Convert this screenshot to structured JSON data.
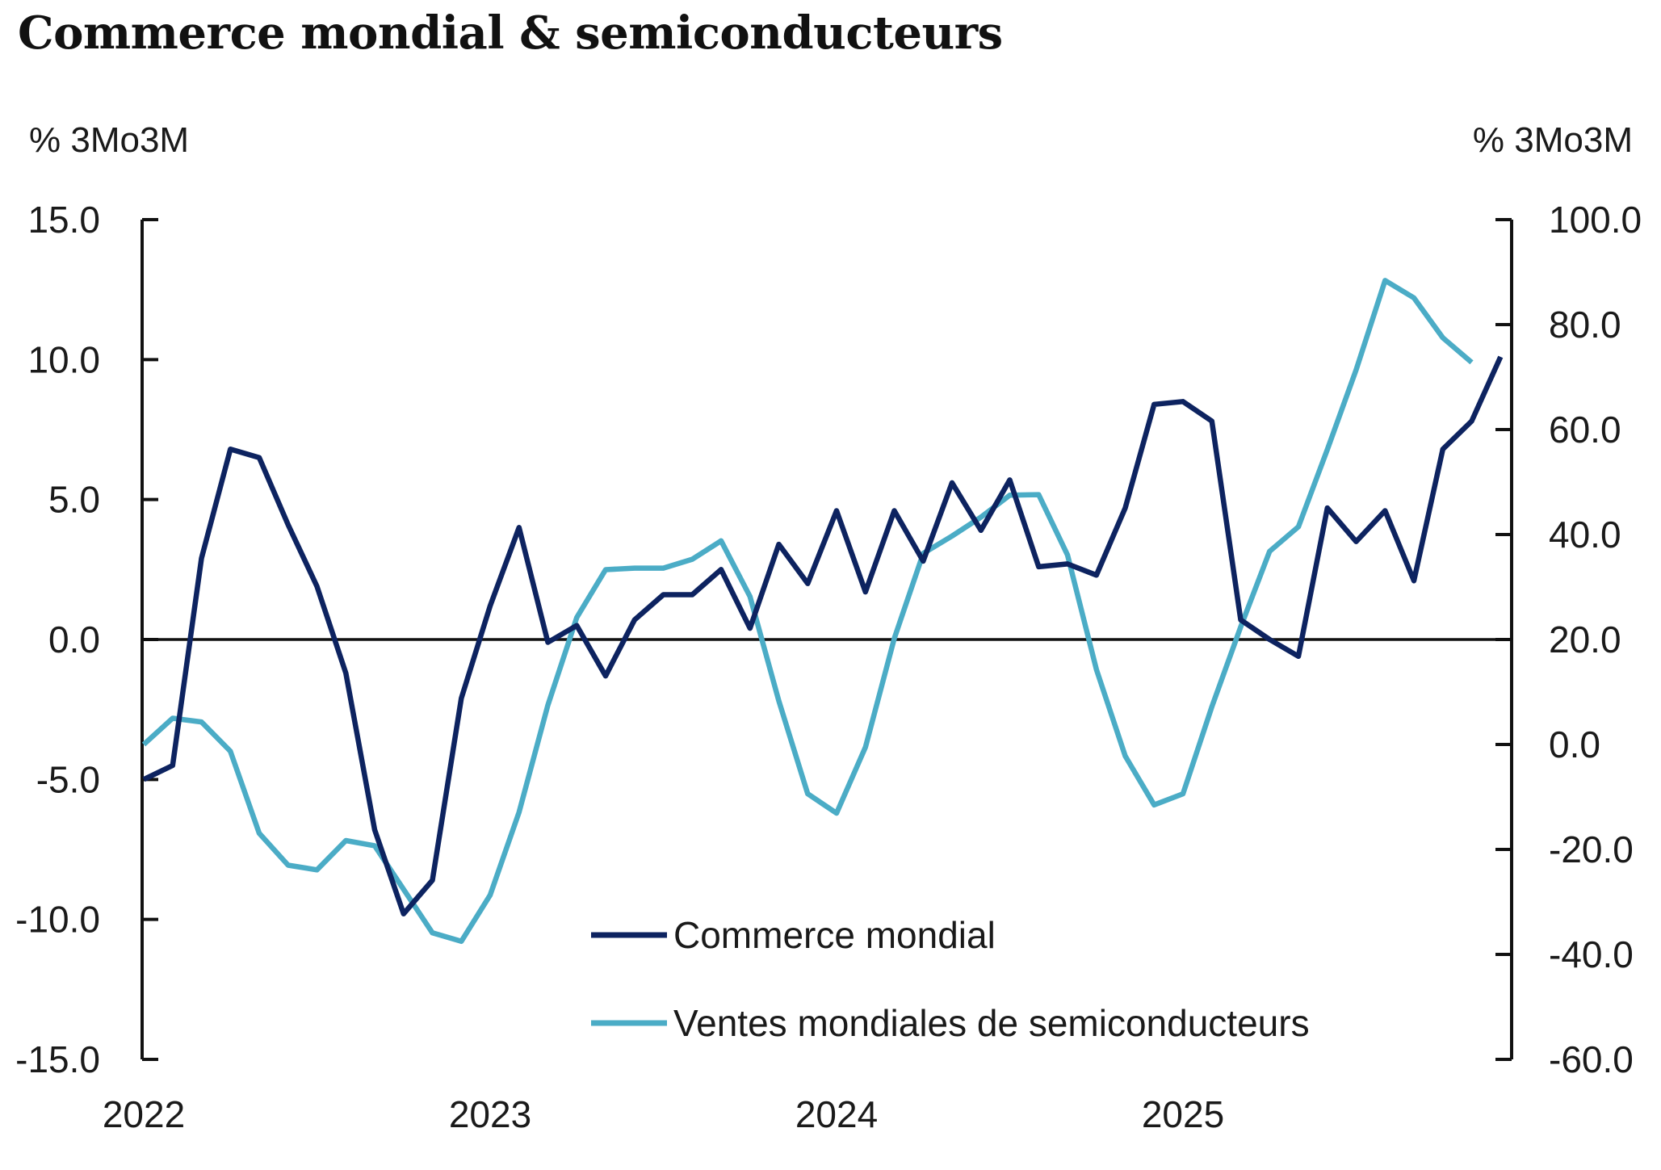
{
  "chart_data": {
    "type": "line",
    "title": "Commerce mondial & semiconducteurs",
    "y_left": {
      "label": "% 3Mo3M",
      "range": [
        -15,
        15
      ],
      "ticks": [
        "15.0",
        "10.0",
        "5.0",
        "0.0",
        "-5.0",
        "-10.0",
        "-15.0"
      ],
      "tick_values": [
        15,
        10,
        5,
        0,
        -5,
        -10,
        -15
      ]
    },
    "y_right": {
      "label": "% 3Mo3M",
      "range": [
        -60,
        100
      ],
      "ticks": [
        "100.0",
        "80.0",
        "60.0",
        "40.0",
        "20.0",
        "0.0",
        "-20.0",
        "-40.0",
        "-60.0"
      ],
      "tick_values": [
        100,
        80,
        60,
        40,
        20,
        0,
        -20,
        -40,
        -60
      ]
    },
    "x_ticks": [
      "2022",
      "2023",
      "2024",
      "2025"
    ],
    "x_start": "2022-01",
    "months": 48,
    "zero_line": true,
    "legend_position": "bottom-center",
    "series": [
      {
        "name": "Commerce mondial",
        "axis": "left",
        "color": "#0d2360",
        "values": [
          -5.0,
          -4.5,
          2.9,
          6.8,
          6.5,
          4.1,
          1.9,
          -1.2,
          -6.8,
          -9.8,
          -8.6,
          -2.1,
          1.2,
          4.0,
          -0.1,
          0.5,
          -1.3,
          0.7,
          1.6,
          1.6,
          2.5,
          0.4,
          3.4,
          2.0,
          4.6,
          1.7,
          4.6,
          2.8,
          5.6,
          3.9,
          5.7,
          2.6,
          2.7,
          2.3,
          4.7,
          8.4,
          8.5,
          7.8,
          0.7,
          0.0,
          -0.6,
          4.7,
          3.5,
          4.6,
          2.1,
          6.8,
          7.8,
          10.1
        ]
      },
      {
        "name": "Ventes mondiales de semiconducteurs",
        "axis": "right",
        "color": "#4bacc6",
        "values": [
          0,
          5,
          4.3,
          -1.3,
          -16.9,
          -23,
          -23.9,
          -18.3,
          -19.3,
          -27.6,
          -35.9,
          -37.5,
          -28.7,
          -12.9,
          7.5,
          24.2,
          33.3,
          33.6,
          33.6,
          35.3,
          38.8,
          28.2,
          8.3,
          -9.4,
          -13.1,
          -0.5,
          20.2,
          36.4,
          39.7,
          43.3,
          47.5,
          47.6,
          36.1,
          14.3,
          -2.2,
          -11.5,
          -9.4,
          7.2,
          22.4,
          36.8,
          41.5,
          56.2,
          71.4,
          88.4,
          85.1,
          77.5,
          72.8
        ]
      }
    ]
  }
}
